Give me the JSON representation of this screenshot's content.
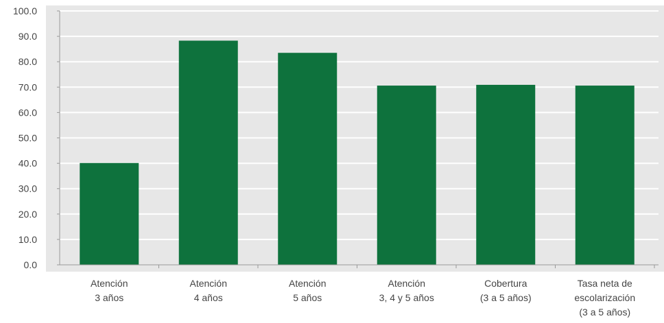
{
  "chart_data": {
    "type": "bar",
    "categories": [
      [
        "Atención",
        "3 años"
      ],
      [
        "Atención",
        "4 años"
      ],
      [
        "Atención",
        "5 años"
      ],
      [
        "Atención",
        "3, 4 y 5 años"
      ],
      [
        "Cobertura",
        "(3 a 5 años)"
      ],
      [
        "Tasa neta de",
        "escolarización",
        "(3 a 5 años)"
      ]
    ],
    "values": [
      40.1,
      88.3,
      83.5,
      70.6,
      70.9,
      70.6
    ],
    "ylim": [
      0,
      100
    ],
    "yticks": [
      "0.0",
      "10.0",
      "20.0",
      "30.0",
      "40.0",
      "50.0",
      "60.0",
      "70.0",
      "80.0",
      "90.0",
      "100.0"
    ],
    "grid": true,
    "legend": "none",
    "colors": {
      "bar": "#0e723d",
      "plot_background": "#e7e7e7",
      "gridline": "#ffffff",
      "axis": "#999999"
    }
  }
}
